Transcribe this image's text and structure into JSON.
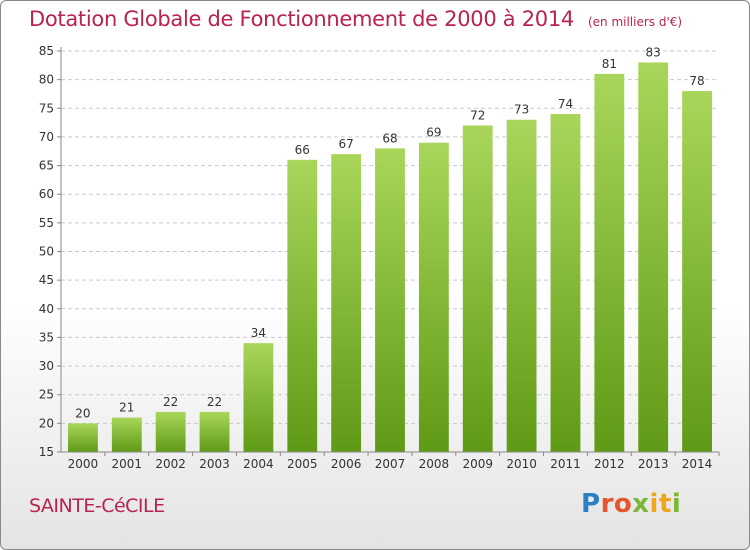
{
  "title": "Dotation Globale de Fonctionnement de 2000 à 2014",
  "unit_label": "(en milliers d'€)",
  "commune": "SAINTE-CéCILE",
  "logo": "Proxiti",
  "colors": {
    "title": "#b8234f",
    "bar_top": "#a9d65a",
    "bar_bottom": "#5f9a16",
    "grid": "#c9c9c9"
  },
  "chart_data": {
    "type": "bar",
    "title": "Dotation Globale de Fonctionnement de 2000 à 2014",
    "subtitle": "(en milliers d'€)",
    "xlabel": "",
    "ylabel": "",
    "categories": [
      "2000",
      "2001",
      "2002",
      "2003",
      "2004",
      "2005",
      "2006",
      "2007",
      "2008",
      "2009",
      "2010",
      "2011",
      "2012",
      "2013",
      "2014"
    ],
    "values": [
      20,
      21,
      22,
      22,
      34,
      66,
      67,
      68,
      69,
      72,
      73,
      74,
      81,
      83,
      78
    ],
    "ylim": [
      15,
      85
    ],
    "yticks": [
      15,
      20,
      25,
      30,
      35,
      40,
      45,
      50,
      55,
      60,
      65,
      70,
      75,
      80,
      85
    ],
    "grid": true,
    "legend": "none"
  }
}
